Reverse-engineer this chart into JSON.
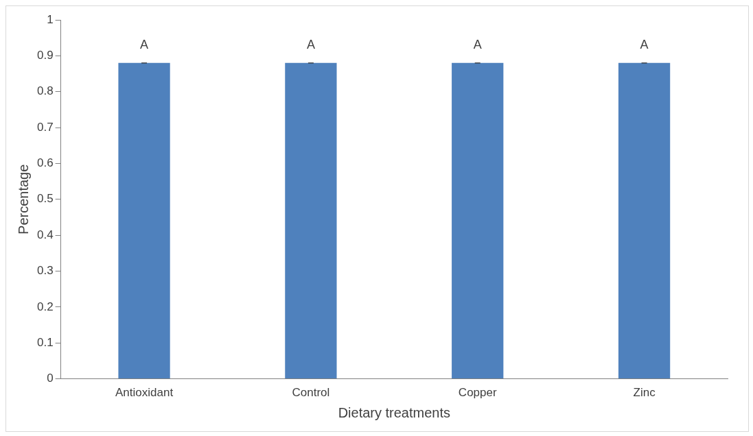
{
  "chart_data": {
    "type": "bar",
    "xlabel": "Dietary treatments",
    "ylabel": "Percentage",
    "categories": [
      "Antioxidant",
      "Control",
      "Copper",
      "Zinc"
    ],
    "values": [
      0.88,
      0.88,
      0.88,
      0.88
    ],
    "errors": [
      0,
      0,
      0,
      0
    ],
    "color": "#4f81bd",
    "ylim": [
      0,
      1
    ],
    "yticks": [
      0,
      0.1,
      0.2,
      0.3,
      0.4,
      0.5,
      0.6,
      0.7,
      0.8,
      0.9,
      1
    ],
    "grid": false,
    "legend": false,
    "annotations": [
      {
        "text": "A",
        "x": "Antioxidant",
        "y": 0.88
      },
      {
        "text": "A",
        "x": "Control",
        "y": 0.88
      },
      {
        "text": "A",
        "x": "Copper",
        "y": 0.88
      },
      {
        "text": "A",
        "x": "Zinc",
        "y": 0.88
      }
    ]
  }
}
